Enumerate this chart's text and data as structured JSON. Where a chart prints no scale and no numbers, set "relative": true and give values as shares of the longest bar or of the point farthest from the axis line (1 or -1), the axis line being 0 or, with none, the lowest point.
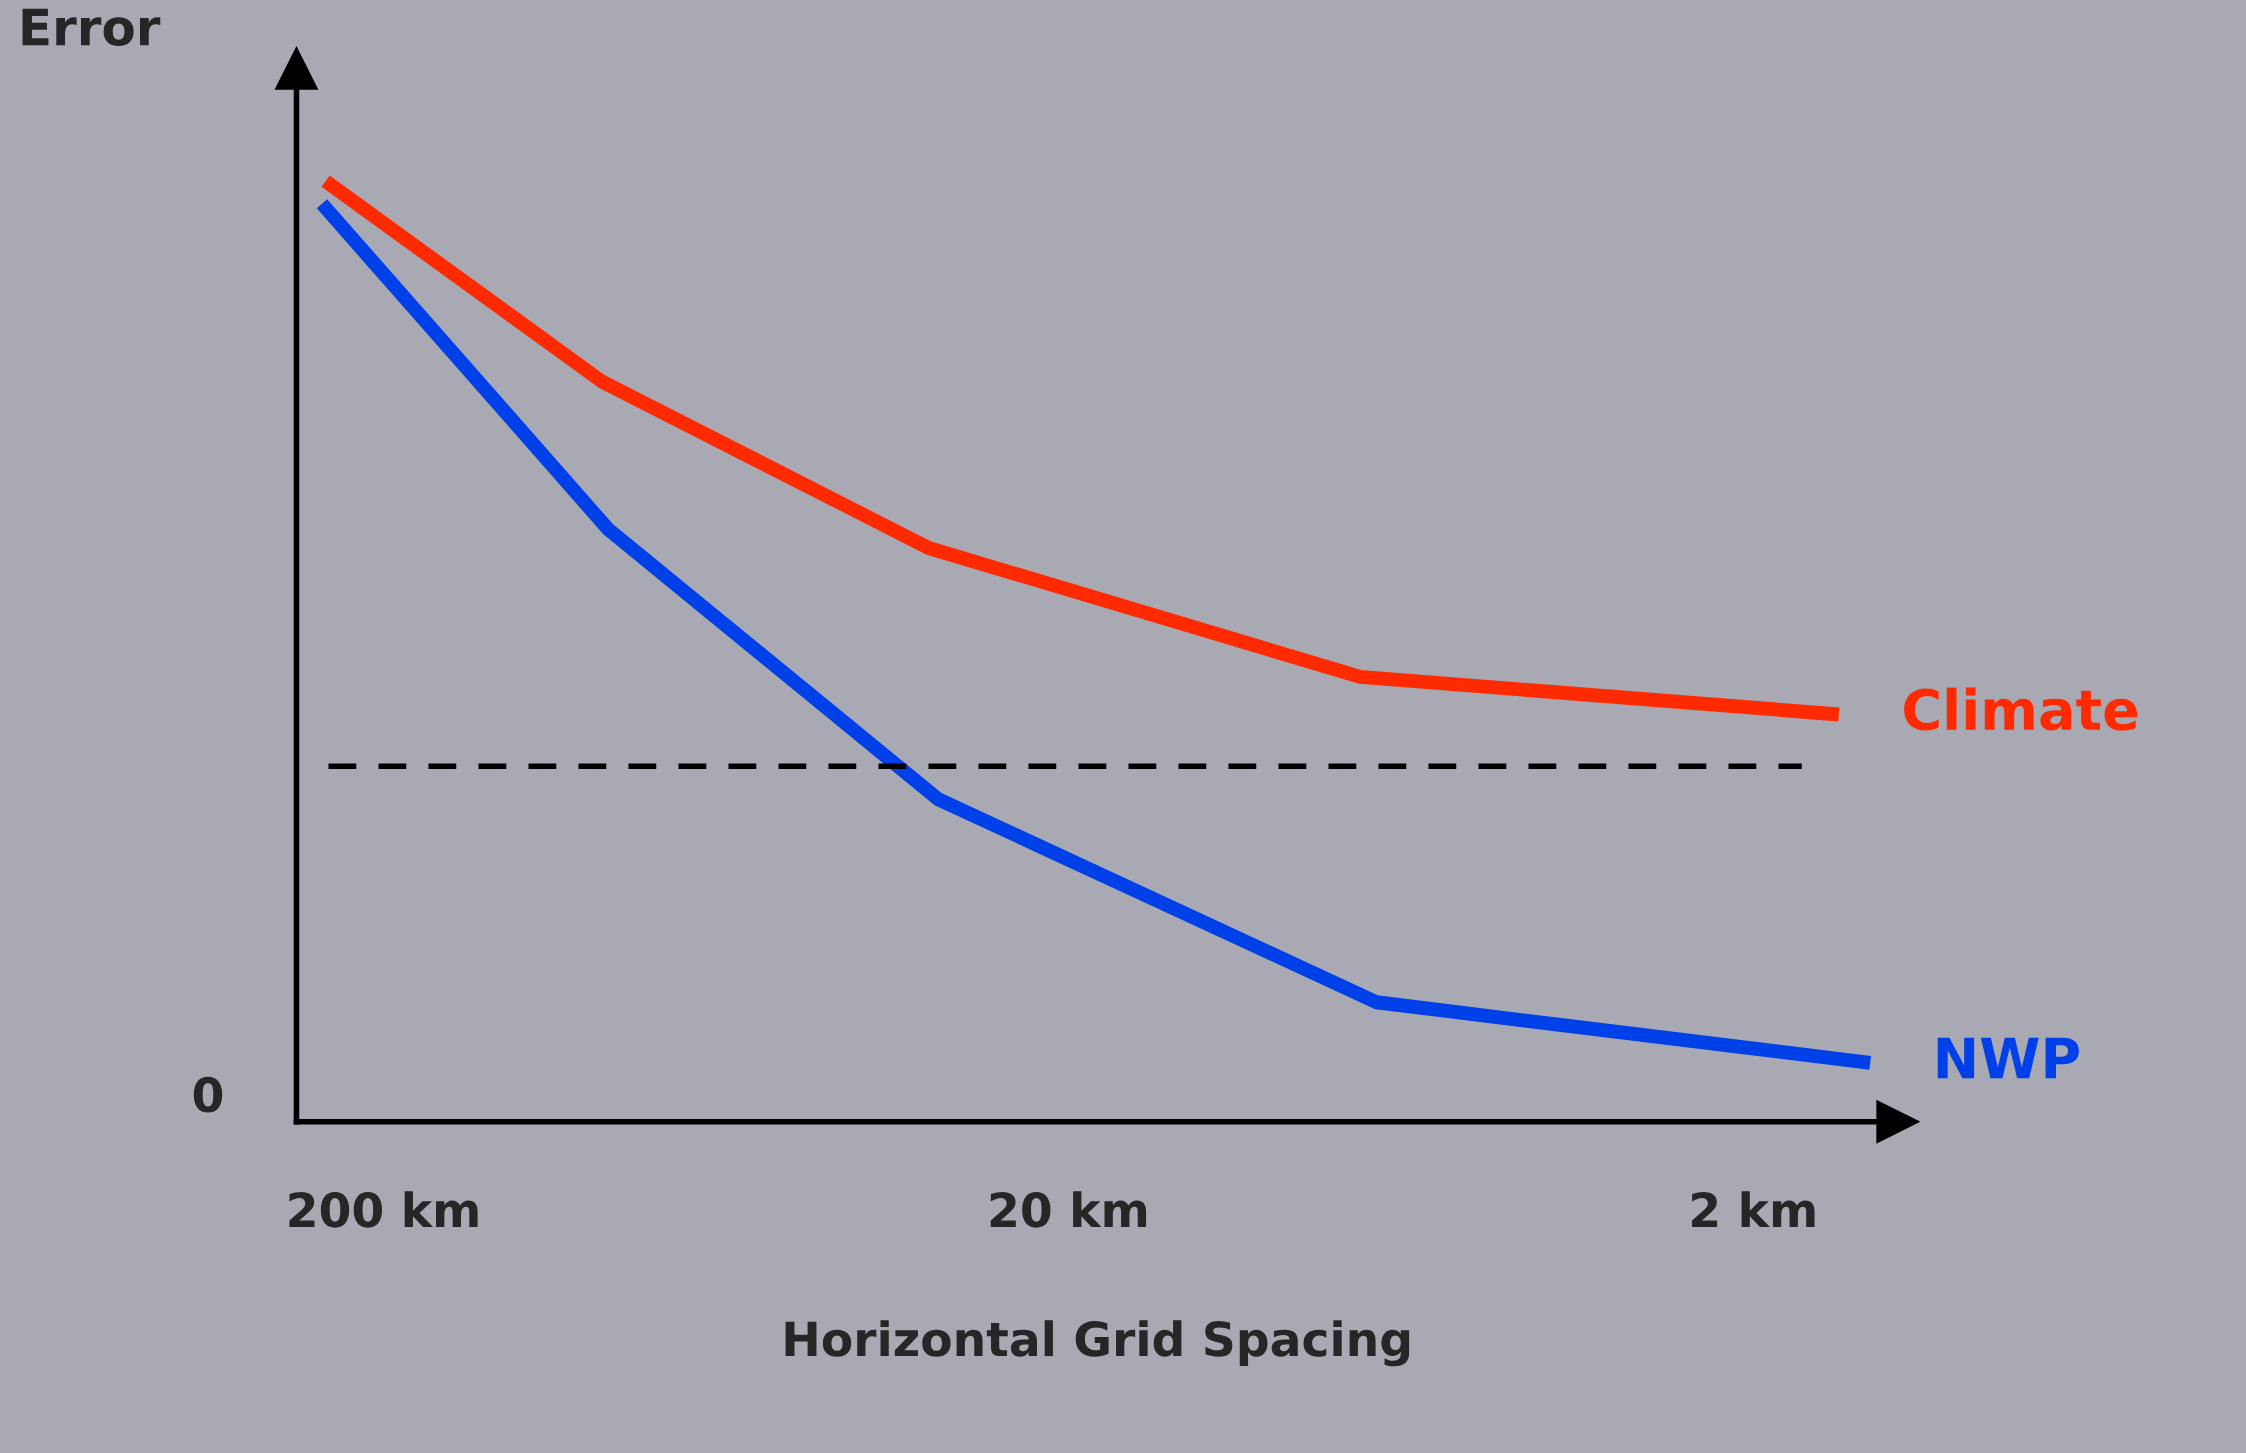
{
  "chart_data": {
    "type": "line",
    "ylabel": "Error",
    "xlabel": "Horizontal Grid Spacing",
    "relative": true,
    "log": "x",
    "xlim": [
      268,
      1.23
    ],
    "xticks": [
      {
        "value": 200,
        "label": "200 km"
      },
      {
        "value": 20,
        "label": "20 km"
      },
      {
        "value": 2,
        "label": "2 km"
      }
    ],
    "tick_labels": "x",
    "grid": false,
    "legend": false,
    "marker": "none",
    "line_style": "solid",
    "series": [
      {
        "name": "Climate",
        "color": "#ff2a00",
        "x": [
          243,
          96,
          32,
          7.5,
          1.5
        ],
        "values": [
          1.0,
          0.787,
          0.61,
          0.473,
          0.433
        ]
      },
      {
        "name": "NWP",
        "color": "#0040e8",
        "x": [
          246,
          94,
          31,
          7.1,
          1.35
        ],
        "values": [
          0.976,
          0.63,
          0.343,
          0.127,
          0.0625
        ]
      }
    ],
    "ref_lines": [
      {
        "axis": "y",
        "value": 0.378,
        "color": "#000000",
        "line_style": "dashed"
      }
    ],
    "annotations": [
      "0"
    ]
  }
}
